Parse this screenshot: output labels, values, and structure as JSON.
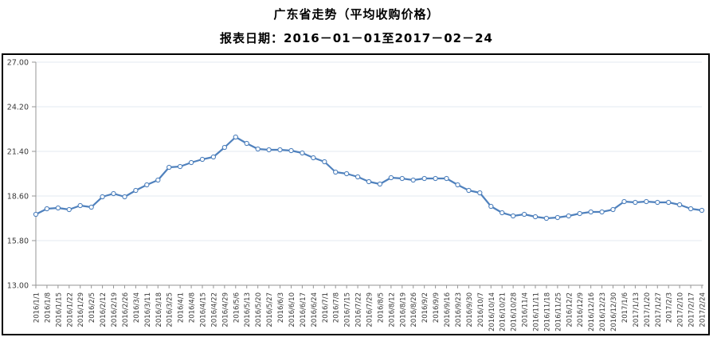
{
  "header": {
    "title": "广东省走势（平均收购价格）",
    "subtitle": "报表日期：2016－01－01至2017－02－24"
  },
  "chart_data": {
    "type": "line",
    "title": "广东省走势（平均收购价格）",
    "xlabel": "",
    "ylabel": "",
    "ylim": [
      13.0,
      27.0
    ],
    "yticks": [
      13.0,
      15.8,
      18.6,
      21.4,
      24.2,
      27.0
    ],
    "grid": true,
    "legend_position": "none",
    "line_color": "#4F81BD",
    "marker_style": "open-circle-white-fill",
    "axis_color": "#969696",
    "gridline_color": "#E3EAF2",
    "tick_label_color": "#3a3a3a",
    "x": [
      "2016/1/1",
      "2016/1/8",
      "2016/1/15",
      "2016/1/22",
      "2016/1/29",
      "2016/2/5",
      "2016/2/12",
      "2016/2/19",
      "2016/2/26",
      "2016/3/4",
      "2016/3/11",
      "2016/3/18",
      "2016/3/25",
      "2016/4/1",
      "2016/4/8",
      "2016/4/15",
      "2016/4/22",
      "2016/4/29",
      "2016/5/6",
      "2016/5/13",
      "2016/5/20",
      "2016/5/27",
      "2016/6/3",
      "2016/6/10",
      "2016/6/17",
      "2016/6/24",
      "2016/7/1",
      "2016/7/8",
      "2016/7/15",
      "2016/7/22",
      "2016/7/29",
      "2016/8/5",
      "2016/8/12",
      "2016/8/19",
      "2016/8/26",
      "2016/9/2",
      "2016/9/9",
      "2016/9/16",
      "2016/9/23",
      "2016/9/30",
      "2016/10/7",
      "2016/10/14",
      "2016/10/21",
      "2016/10/28",
      "2016/11/4",
      "2016/11/11",
      "2016/11/18",
      "2016/11/25",
      "2016/12/2",
      "2016/12/9",
      "2016/12/16",
      "2016/12/23",
      "2016/12/30",
      "2017/1/6",
      "2017/1/13",
      "2017/1/20",
      "2017/1/27",
      "2017/2/3",
      "2017/2/10",
      "2017/2/17",
      "2017/2/24"
    ],
    "series": [
      {
        "values": [
          17.45,
          17.8,
          17.85,
          17.75,
          18.0,
          17.9,
          18.55,
          18.75,
          18.55,
          18.95,
          19.3,
          19.6,
          20.4,
          20.45,
          20.7,
          20.9,
          21.05,
          21.65,
          22.3,
          21.9,
          21.55,
          21.5,
          21.5,
          21.45,
          21.3,
          21.0,
          20.75,
          20.1,
          20.0,
          19.8,
          19.5,
          19.35,
          19.75,
          19.7,
          19.6,
          19.7,
          19.7,
          19.7,
          19.3,
          18.95,
          18.8,
          17.95,
          17.55,
          17.35,
          17.45,
          17.3,
          17.2,
          17.25,
          17.35,
          17.5,
          17.6,
          17.6,
          17.75,
          18.25,
          18.2,
          18.25,
          18.2,
          18.2,
          18.05,
          17.8,
          17.7
        ]
      }
    ]
  }
}
